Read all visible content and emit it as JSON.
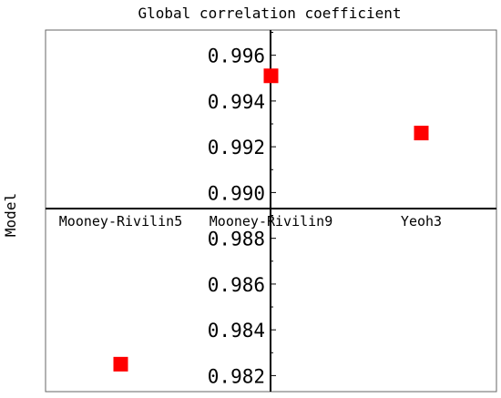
{
  "chart_data": {
    "type": "scatter",
    "title": "Global correlation coefficient",
    "xlabel": "",
    "ylabel": "Model",
    "categories": [
      "Mooney-Rivilin5",
      "Mooney-Rivilin9",
      "Yeoh3"
    ],
    "ylim": [
      0.9813,
      0.9971
    ],
    "yticks": [
      0.982,
      0.984,
      0.986,
      0.988,
      0.99,
      0.992,
      0.994,
      0.996
    ],
    "ytick_labels": [
      "0.982",
      "0.984",
      "0.986",
      "0.988",
      "0.990",
      "0.992",
      "0.994",
      "0.996"
    ],
    "x_axis_crosses_y_at": 0.9893,
    "series": [
      {
        "values": [
          0.9825,
          0.9951,
          0.9926
        ],
        "color": "#ff0000",
        "marker": "square"
      }
    ],
    "grid": false
  }
}
